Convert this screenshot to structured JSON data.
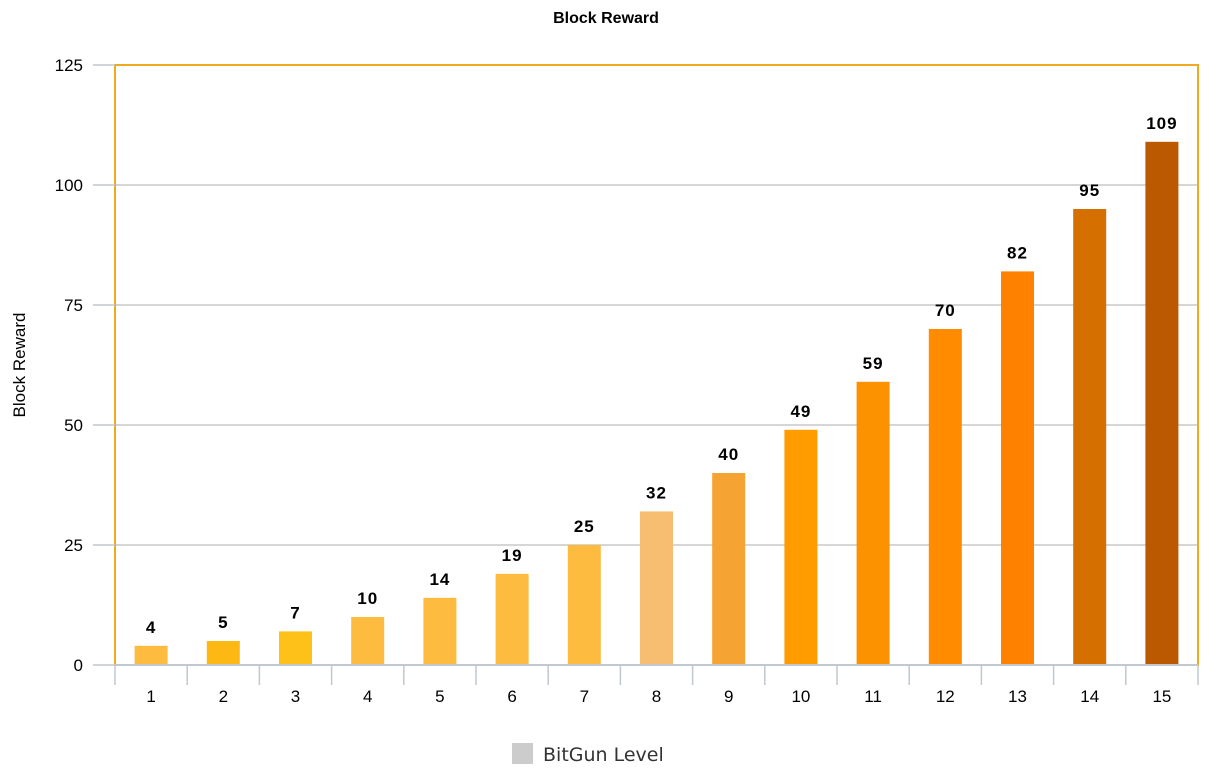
{
  "chart_data": {
    "type": "bar",
    "title": "Block Reward",
    "ylabel": "Block Reward",
    "xlabel": "",
    "ylim": [
      0,
      125
    ],
    "yticks": [
      0,
      25,
      50,
      75,
      100,
      125
    ],
    "grid": true,
    "legend_position": "bottom-center",
    "categories": [
      "1",
      "2",
      "3",
      "4",
      "5",
      "6",
      "7",
      "8",
      "9",
      "10",
      "11",
      "12",
      "13",
      "14",
      "15"
    ],
    "series": [
      {
        "name": "BitGun Level",
        "values": [
          4,
          5,
          7,
          10,
          14,
          19,
          25,
          32,
          40,
          49,
          59,
          70,
          82,
          95,
          109
        ]
      }
    ],
    "data_labels": [
      "4",
      "5",
      "7",
      "10",
      "14",
      "19",
      "25",
      "32",
      "40",
      "49",
      "59",
      "70",
      "82",
      "95",
      "109"
    ],
    "bar_colors": [
      "#fdbb40",
      "#fdb813",
      "#fdc11a",
      "#fdbb40",
      "#fdbb40",
      "#fdbb40",
      "#fdbb40",
      "#f7bd70",
      "#f5a332",
      "#fe9c00",
      "#fd9200",
      "#fe8b00",
      "#fe8200",
      "#d57000",
      "#bb5900"
    ],
    "colors": {
      "plot_border": "#f0aa20",
      "grid": "#c8c8c8",
      "axis": "#c0c8d0",
      "legend_swatch": "#cccccc"
    }
  }
}
